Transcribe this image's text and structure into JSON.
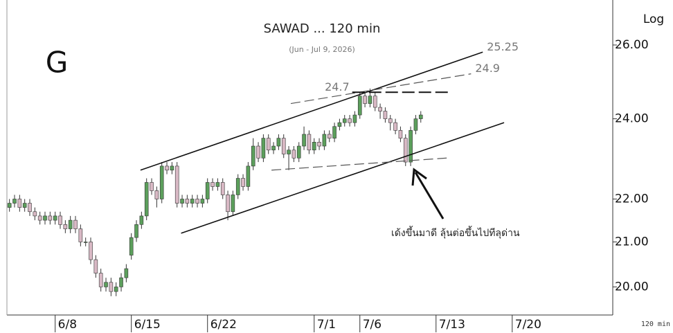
{
  "chart_data": {
    "type": "candlestick",
    "title": "SAWAD ... 120 min",
    "subtitle": "(Jun - Jul 9, 2026)",
    "corner_label": "G",
    "scale_label": "Log",
    "interval_label": "120 min",
    "annotation": "เด้งขึ้นมาดี ลุ้นต่อขึ้นไปทีลุด่าน",
    "log": true,
    "up_color": "#5c9f5c",
    "down_color": "#d9b9c5",
    "x": [
      -9,
      -8,
      -7,
      -6,
      -5,
      -4,
      -3,
      -2,
      -1,
      0,
      1,
      2,
      3,
      4,
      5,
      6,
      7,
      8,
      9,
      10,
      11,
      12,
      13,
      14,
      15,
      16,
      17,
      18,
      19,
      20,
      21,
      22,
      23,
      24,
      25,
      26,
      27,
      28,
      29,
      30,
      31,
      32,
      33,
      34,
      35,
      36,
      37,
      38,
      39,
      40,
      41,
      42,
      43,
      44,
      45,
      46,
      47,
      48,
      49,
      50,
      51,
      52,
      53,
      54,
      55,
      56,
      57,
      58,
      59,
      60,
      61,
      62,
      63,
      64,
      65,
      66,
      67,
      68,
      69,
      70,
      71,
      72
    ],
    "open": [
      21.8,
      21.9,
      22.0,
      21.8,
      21.9,
      21.7,
      21.6,
      21.5,
      21.6,
      21.5,
      21.6,
      21.4,
      21.3,
      21.5,
      21.3,
      21.0,
      21.0,
      20.6,
      20.3,
      20.0,
      20.1,
      19.9,
      20.0,
      20.2,
      20.7,
      21.1,
      21.4,
      21.6,
      22.4,
      22.2,
      22.0,
      22.8,
      22.7,
      22.8,
      21.9,
      22.0,
      21.9,
      22.0,
      21.9,
      22.0,
      22.4,
      22.3,
      22.4,
      22.1,
      21.7,
      22.1,
      22.5,
      22.3,
      22.8,
      23.3,
      23.0,
      23.5,
      23.2,
      23.3,
      23.5,
      23.1,
      23.2,
      23.0,
      23.3,
      23.6,
      23.2,
      23.4,
      23.3,
      23.6,
      23.5,
      23.8,
      23.9,
      24.0,
      23.9,
      24.1,
      24.6,
      24.4,
      24.6,
      24.3,
      24.2,
      24.0,
      23.9,
      23.7,
      23.5,
      22.9,
      23.7,
      24.0
    ],
    "high": [
      22.0,
      22.1,
      22.1,
      22.0,
      22.0,
      21.8,
      21.7,
      21.7,
      21.7,
      21.7,
      21.7,
      21.5,
      21.6,
      21.6,
      21.4,
      21.1,
      21.1,
      20.7,
      20.4,
      20.2,
      20.2,
      20.1,
      20.3,
      20.5,
      21.2,
      21.5,
      21.7,
      22.5,
      22.5,
      22.3,
      22.9,
      22.9,
      22.9,
      22.9,
      22.1,
      22.1,
      22.1,
      22.1,
      22.1,
      22.5,
      22.5,
      22.5,
      22.5,
      22.2,
      22.2,
      22.6,
      22.6,
      22.9,
      23.5,
      23.4,
      23.6,
      23.6,
      23.4,
      23.6,
      23.6,
      23.3,
      23.3,
      23.4,
      23.8,
      23.7,
      23.5,
      23.5,
      23.7,
      23.7,
      23.9,
      24.0,
      24.1,
      24.1,
      24.2,
      24.7,
      24.7,
      24.8,
      24.7,
      24.4,
      24.3,
      24.1,
      24.0,
      23.8,
      23.6,
      23.8,
      24.1,
      24.2
    ],
    "low": [
      21.7,
      21.8,
      21.7,
      21.7,
      21.6,
      21.5,
      21.4,
      21.4,
      21.4,
      21.4,
      21.3,
      21.2,
      21.2,
      21.2,
      20.9,
      20.9,
      20.5,
      20.2,
      19.9,
      19.9,
      19.8,
      19.8,
      19.9,
      20.1,
      20.6,
      21.0,
      21.3,
      21.5,
      22.1,
      21.8,
      21.9,
      22.6,
      22.6,
      21.8,
      21.8,
      21.8,
      21.8,
      21.8,
      21.8,
      21.9,
      22.2,
      22.2,
      22.0,
      21.5,
      21.6,
      22.0,
      22.2,
      22.2,
      22.7,
      22.9,
      22.9,
      23.1,
      23.1,
      23.2,
      23.0,
      22.7,
      22.9,
      22.9,
      23.2,
      23.1,
      23.1,
      23.2,
      23.2,
      23.4,
      23.4,
      23.7,
      23.8,
      23.8,
      23.8,
      24.0,
      24.3,
      24.3,
      24.2,
      24.0,
      23.9,
      23.7,
      23.6,
      23.4,
      22.8,
      22.8,
      23.6,
      23.9
    ],
    "close": [
      21.9,
      22.0,
      21.8,
      21.9,
      21.7,
      21.6,
      21.5,
      21.6,
      21.5,
      21.6,
      21.4,
      21.3,
      21.5,
      21.3,
      21.0,
      21.0,
      20.6,
      20.3,
      20.0,
      20.1,
      19.9,
      20.0,
      20.2,
      20.4,
      21.1,
      21.4,
      21.6,
      22.4,
      22.2,
      22.0,
      22.8,
      22.7,
      22.8,
      21.9,
      22.0,
      21.9,
      22.0,
      21.9,
      22.0,
      22.4,
      22.3,
      22.4,
      22.1,
      21.7,
      22.1,
      22.5,
      22.3,
      22.8,
      23.3,
      23.0,
      23.5,
      23.2,
      23.3,
      23.5,
      23.1,
      23.2,
      23.0,
      23.3,
      23.6,
      23.2,
      23.4,
      23.3,
      23.6,
      23.5,
      23.8,
      23.9,
      24.0,
      23.9,
      24.1,
      24.6,
      24.4,
      24.6,
      24.3,
      24.2,
      24.0,
      23.9,
      23.7,
      23.5,
      22.9,
      23.7,
      24.0,
      24.1
    ],
    "xlim": [
      -9.5,
      109.8
    ],
    "xticks": [
      {
        "value": 0,
        "label": "6/8"
      },
      {
        "value": 15,
        "label": "6/15"
      },
      {
        "value": 30,
        "label": "6/22"
      },
      {
        "value": 51,
        "label": "7/1"
      },
      {
        "value": 60,
        "label": "7/6"
      },
      {
        "value": 75,
        "label": "7/13"
      },
      {
        "value": 90,
        "label": "7/20"
      }
    ],
    "ylim": [
      19.4,
      27.3
    ],
    "yticks": [
      {
        "value": 20,
        "label": "20.00"
      },
      {
        "value": 21,
        "label": "21.00"
      },
      {
        "value": 22,
        "label": "22.00"
      },
      {
        "value": 24,
        "label": "24.00"
      },
      {
        "value": 26,
        "label": "26.00"
      }
    ],
    "trendlines": [
      {
        "x": [
          16.8,
          84.2
        ],
        "y": [
          22.7,
          25.8
        ],
        "dash": false,
        "label": "25.25",
        "label_side": "end"
      },
      {
        "x": [
          46.4,
          81.9
        ],
        "y": [
          24.4,
          25.2
        ],
        "dash": true,
        "label": "24.9",
        "label_side": "end"
      },
      {
        "x": [
          58.5,
          77.6
        ],
        "y": [
          24.7,
          24.7
        ],
        "dash": true,
        "label": "24.7",
        "label_side": "start"
      },
      {
        "x": [
          24.8,
          88.4
        ],
        "y": [
          21.2,
          23.9
        ],
        "dash": false
      },
      {
        "x": [
          42.6,
          77.1
        ],
        "y": [
          22.7,
          23.0
        ],
        "dash": true
      }
    ]
  }
}
